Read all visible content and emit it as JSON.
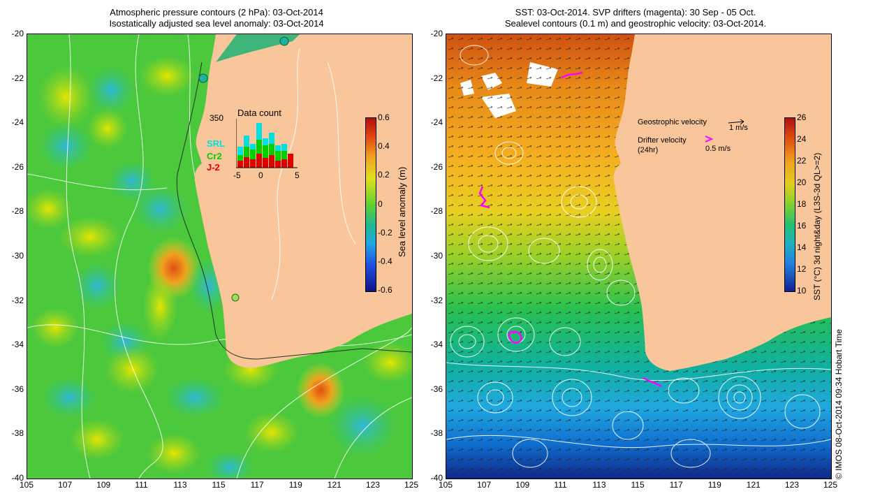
{
  "left_panel": {
    "title_line1": "Atmospheric pressure contours (2 hPa): 03-Oct-2014",
    "title_line2": "Isostatically adjusted sea level anomaly: 03-Oct-2014",
    "colorbar": {
      "label": "Sea level anomaly (m)",
      "ticks": [
        "0.6",
        "0.4",
        "0.2",
        "0",
        "-0.2",
        "-0.4",
        "-0.6"
      ]
    },
    "inset": {
      "title": "Data count",
      "y_max_label": "350",
      "x_ticks": [
        "-5",
        "0",
        "5"
      ],
      "legend": [
        {
          "label": "SRL",
          "color": "#00e0e0"
        },
        {
          "label": "Cr2",
          "color": "#00d000"
        },
        {
          "label": "J-2",
          "color": "#e00000"
        }
      ]
    }
  },
  "right_panel": {
    "title_line1": "SST: 03-Oct-2014. SVP drifters (magenta): 30 Sep - 05 Oct.",
    "title_line2": "Sealevel contours (0.1 m) and geostrophic velocity: 03-Oct-2014.",
    "colorbar": {
      "label": "SST (°C) 3d night&day (L3S-3d QL>=2)",
      "ticks": [
        "26",
        "24",
        "22",
        "20",
        "18",
        "16",
        "14",
        "12",
        "10"
      ]
    },
    "legend": {
      "geostrophic_label": "Geostrophic velocity",
      "geostrophic_scale": "1 m/s",
      "drifter_label": "Drifter velocity",
      "drifter_sub": "(24hr)",
      "drifter_scale": "0.5 m/s"
    }
  },
  "axes": {
    "x_ticks": [
      "105",
      "107",
      "109",
      "111",
      "113",
      "115",
      "117",
      "119",
      "121",
      "123",
      "125"
    ],
    "y_ticks": [
      "-20",
      "-22",
      "-24",
      "-26",
      "-28",
      "-30",
      "-32",
      "-34",
      "-36",
      "-38",
      "-40"
    ]
  },
  "credit": "© IMOS 08-Oct-2014 09:34 Hobart Time",
  "colors": {
    "land": "#f9c69c",
    "drifter": "#ff00ff"
  }
}
